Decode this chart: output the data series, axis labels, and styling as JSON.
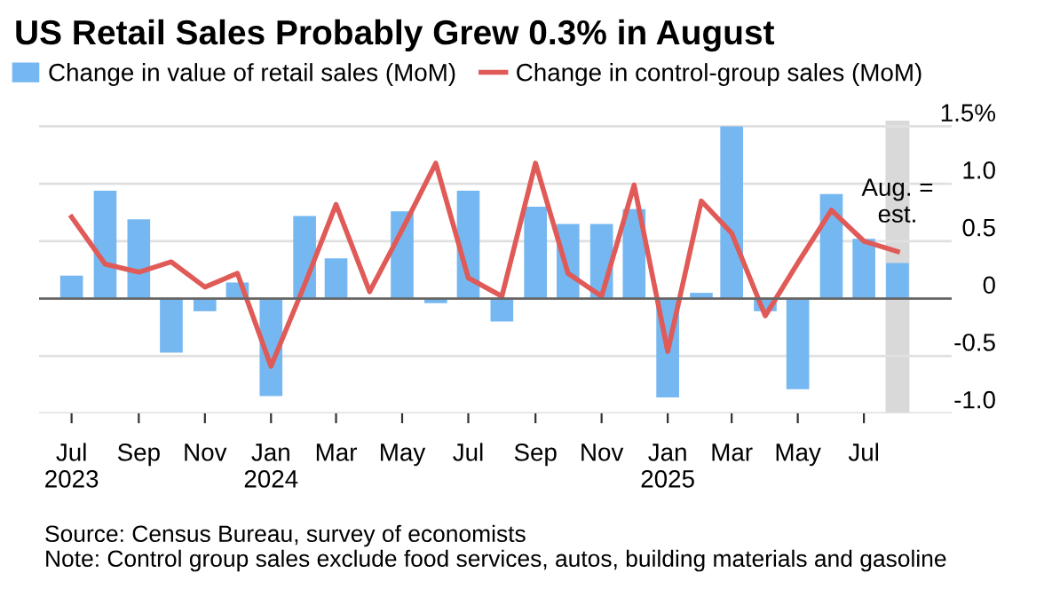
{
  "chart_data": {
    "type": "bar",
    "title": "US Retail Sales Probably Grew 0.3% in August",
    "x": [
      "2023-07",
      "2023-08",
      "2023-09",
      "2023-10",
      "2023-11",
      "2023-12",
      "2024-01",
      "2024-02",
      "2024-03",
      "2024-04",
      "2024-05",
      "2024-06",
      "2024-07",
      "2024-08",
      "2024-09",
      "2024-10",
      "2024-11",
      "2024-12",
      "2025-01",
      "2025-02",
      "2025-03",
      "2025-04",
      "2025-05",
      "2025-06",
      "2025-07",
      "2025-08"
    ],
    "series": [
      {
        "name": "Change in value of retail sales (MoM)",
        "color": "#75b7f1",
        "values": [
          0.2,
          0.94,
          0.69,
          -0.47,
          -0.11,
          0.14,
          -0.85,
          0.72,
          0.35,
          0.0,
          0.76,
          -0.04,
          0.94,
          -0.2,
          0.8,
          0.65,
          0.65,
          0.78,
          -0.86,
          0.05,
          1.5,
          -0.11,
          -0.79,
          0.91,
          0.52,
          0.31
        ]
      },
      {
        "name": "Change in control-group sales (MoM)",
        "type": "line",
        "color": "#e05a57",
        "values": [
          0.71,
          0.3,
          0.23,
          0.32,
          0.1,
          0.22,
          -0.59,
          0.12,
          0.82,
          0.06,
          0.6,
          1.18,
          0.18,
          0.02,
          1.18,
          0.22,
          0.02,
          0.99,
          -0.46,
          0.85,
          0.57,
          -0.15,
          0.31,
          0.77,
          0.5,
          0.41
        ]
      }
    ],
    "xlim": [
      "2023-06-01",
      "2025-09-20"
    ],
    "xticks": [
      {
        "value": "2023-07",
        "label": "Jul\n2023"
      },
      {
        "value": "2023-09",
        "label": "Sep"
      },
      {
        "value": "2023-11",
        "label": "Nov"
      },
      {
        "value": "2024-01",
        "label": "Jan\n2024"
      },
      {
        "value": "2024-03",
        "label": "Mar"
      },
      {
        "value": "2024-05",
        "label": "May"
      },
      {
        "value": "2024-07",
        "label": "Jul"
      },
      {
        "value": "2024-09",
        "label": "Sep"
      },
      {
        "value": "2024-11",
        "label": "Nov"
      },
      {
        "value": "2025-01",
        "label": "Jan\n2025"
      },
      {
        "value": "2025-03",
        "label": "Mar"
      },
      {
        "value": "2025-05",
        "label": "May"
      },
      {
        "value": "2025-07",
        "label": "Jul"
      }
    ],
    "ylim": [
      -1.0,
      1.55
    ],
    "yticks": [
      {
        "value": 1.5,
        "label": "1.5%"
      },
      {
        "value": 1.0,
        "label": "1.0"
      },
      0.5,
      0,
      {
        "value": -0.5,
        "label": "-0.5"
      },
      {
        "value": -1.0,
        "label": "-1.0"
      }
    ],
    "grid": "y",
    "legend": "top left",
    "bands": [
      {
        "axis": "x",
        "from": "2025-07-21",
        "to": "2025-08-12",
        "label": "Aug. =\nest.",
        "color": "#d9d9d9"
      }
    ],
    "annotations": [
      "Source: Census Bureau, survey of economists",
      "Note: Control group sales exclude food services, autos, building materials and gasoline"
    ]
  }
}
